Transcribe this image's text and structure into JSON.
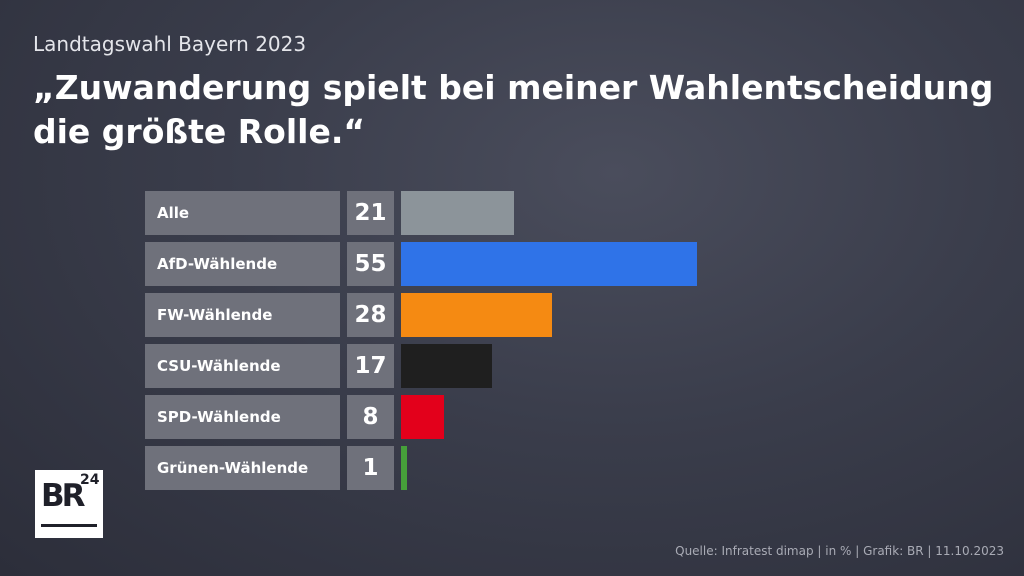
{
  "header": {
    "subtitle": "Landtagswahl Bayern 2023",
    "title_line1": "„Zuwanderung spielt bei meiner Wahlentscheidung",
    "title_line2": "die größte Rolle.“"
  },
  "chart_data": {
    "type": "bar",
    "orientation": "horizontal",
    "categories": [
      "Alle",
      "AfD-Wählende",
      "FW-Wählende",
      "CSU-Wählende",
      "SPD-Wählende",
      "Grünen-Wählende"
    ],
    "values": [
      21,
      55,
      28,
      17,
      8,
      1
    ],
    "colors": [
      "#8c949a",
      "#2f73e8",
      "#f58a12",
      "#1f1f1f",
      "#e3001b",
      "#46a03a"
    ],
    "unit": "%",
    "xlim": [
      0,
      55
    ],
    "grid": false,
    "legend": "none"
  },
  "logo": {
    "text": "BR",
    "superscript": "24"
  },
  "footer": {
    "source": "Quelle: Infratest dimap | in % | Grafik: BR | 11.10.2023"
  }
}
